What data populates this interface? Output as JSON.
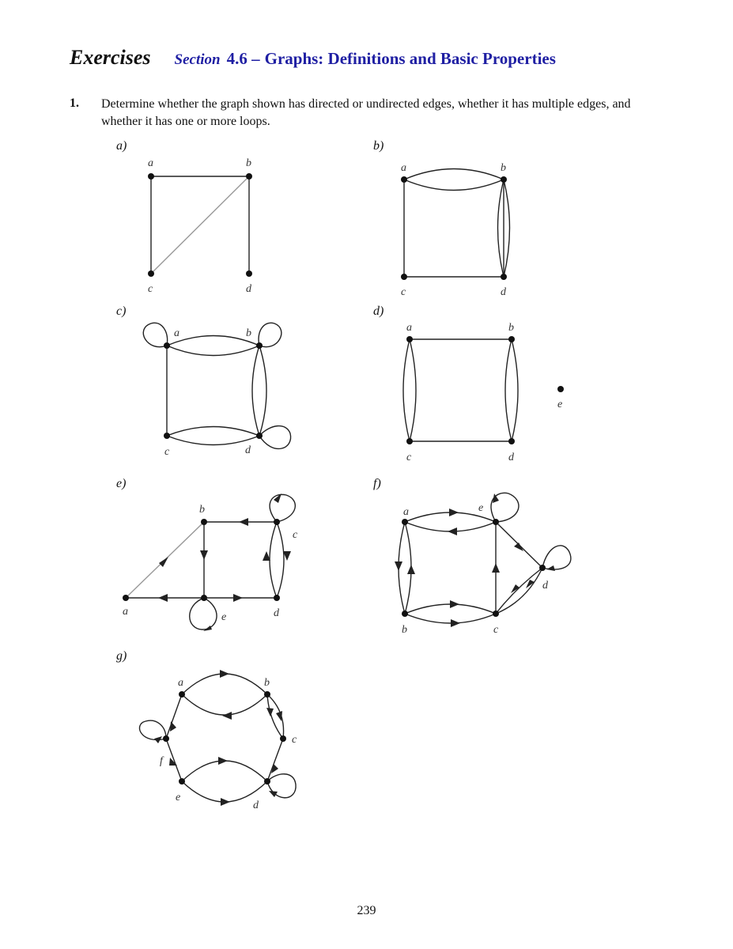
{
  "header": {
    "exercises": "Exercises",
    "section_word": "Section",
    "section_number": "4.6 –",
    "section_title": "Graphs: Definitions and Basic Properties"
  },
  "question": {
    "number": "1.",
    "text": "Determine whether the graph shown has directed or undirected edges, whether it has multiple edges, and whether it has one or more loops."
  },
  "parts": {
    "a": {
      "label": "a)",
      "vertices": [
        "a",
        "b",
        "c",
        "d"
      ]
    },
    "b": {
      "label": "b)",
      "vertices": [
        "a",
        "b",
        "c",
        "d"
      ]
    },
    "c": {
      "label": "c)",
      "vertices": [
        "a",
        "b",
        "c",
        "d"
      ]
    },
    "d": {
      "label": "d)",
      "vertices": [
        "a",
        "b",
        "c",
        "d",
        "e"
      ]
    },
    "e": {
      "label": "e)",
      "vertices": [
        "a",
        "b",
        "c",
        "d",
        "e"
      ]
    },
    "f": {
      "label": "f)",
      "vertices": [
        "a",
        "b",
        "c",
        "d",
        "e"
      ]
    },
    "g": {
      "label": "g)",
      "vertices": [
        "a",
        "b",
        "c",
        "d",
        "e",
        "f"
      ]
    }
  },
  "page_number": "239",
  "colors": {
    "heading_blue": "#1f1fa3",
    "edge": "#222222",
    "gray_edge": "#999999"
  }
}
